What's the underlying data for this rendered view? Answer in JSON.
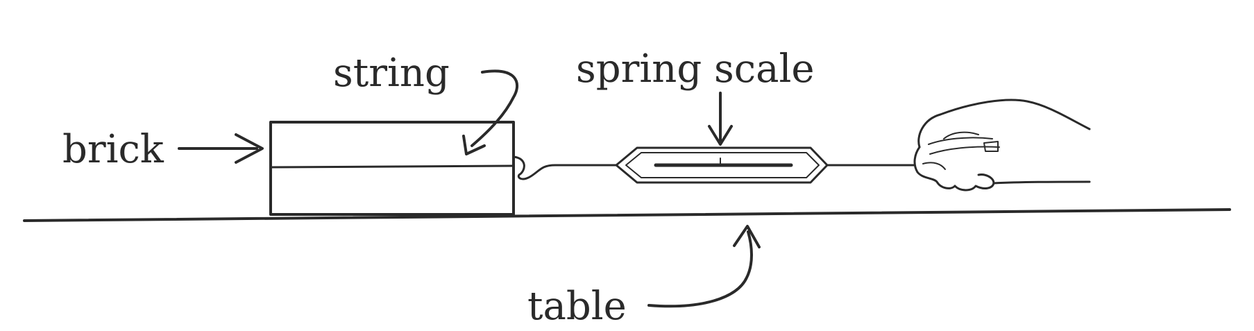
{
  "labels": {
    "brick": "brick",
    "string": "string",
    "spring_scale": "spring scale",
    "table": "table"
  },
  "colors": {
    "ink": "#2a2a2a",
    "background": "#ffffff"
  }
}
